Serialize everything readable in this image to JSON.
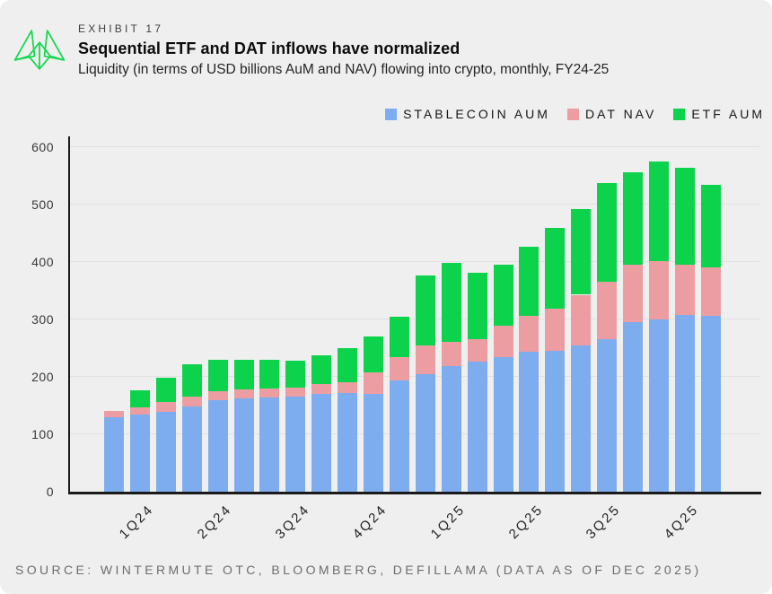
{
  "figure": {
    "exhibit_label": "EXHIBIT 17",
    "title": "Sequential ETF and DAT inflows have normalized",
    "subtitle": "Liquidity (in terms of USD billions AuM and NAV) flowing into crypto, monthly, FY24-25",
    "source": "SOURCE: WINTERMUTE OTC, BLOOMBERG, DEFILLAMA (DATA AS OF DEC 2025)"
  },
  "colors": {
    "background": "#efefef",
    "gridline": "#e0e0e0",
    "axis": "#1a1a1a",
    "stablecoin_blue": "#7dadee",
    "dat_pink": "#ec9da2",
    "etf_green": "#0cd24c",
    "logo_green": "#15d84c"
  },
  "legend": [
    {
      "label": "STABLECOIN AUM",
      "color": "#7dadee"
    },
    {
      "label": "DAT NAV",
      "color": "#ec9da2"
    },
    {
      "label": "ETF AUM",
      "color": "#0cd24c"
    }
  ],
  "chart_data": {
    "type": "bar",
    "stacked": true,
    "title": "Sequential ETF and DAT inflows have normalized",
    "xlabel": "",
    "ylabel": "",
    "units": "USD billions",
    "n_bars": 24,
    "bars_per_quarter": 3,
    "x_tick_labels": [
      "1Q24",
      "2Q24",
      "3Q24",
      "4Q24",
      "1Q25",
      "2Q25",
      "3Q25",
      "4Q25"
    ],
    "y_ticks": [
      0,
      100,
      200,
      300,
      400,
      500,
      600
    ],
    "ylim": [
      0,
      618
    ],
    "grid": true,
    "legend_position": "top-right",
    "series": [
      {
        "name": "STABLECOIN AUM",
        "color": "#7dadee",
        "values": [
          130,
          135,
          139,
          149,
          160,
          162,
          164,
          166,
          171,
          172,
          171,
          194,
          204,
          219,
          226,
          235,
          243,
          246,
          254,
          266,
          296,
          300,
          308,
          306
        ]
      },
      {
        "name": "DAT NAV",
        "color": "#ec9da2",
        "values": [
          10,
          12,
          18,
          16,
          15,
          16,
          16,
          15,
          17,
          19,
          37,
          40,
          50,
          42,
          40,
          54,
          63,
          72,
          89,
          100,
          99,
          102,
          88,
          84
        ]
      },
      {
        "name": "ETF AUM",
        "color": "#0cd24c",
        "values": [
          0,
          30,
          42,
          57,
          54,
          52,
          49,
          47,
          49,
          59,
          62,
          71,
          122,
          138,
          116,
          106,
          121,
          141,
          149,
          171,
          162,
          173,
          168,
          144
        ]
      }
    ],
    "totals": [
      140,
      177,
      199,
      222,
      229,
      230,
      229,
      228,
      237,
      250,
      270,
      305,
      376,
      399,
      382,
      395,
      427,
      459,
      492,
      537,
      557,
      575,
      564,
      534
    ]
  }
}
